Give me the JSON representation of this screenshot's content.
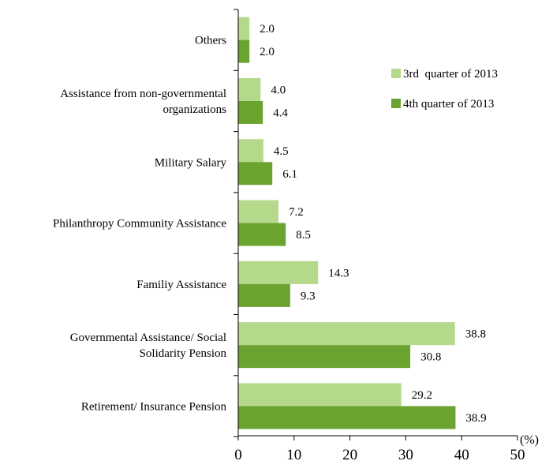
{
  "chart_data": {
    "type": "bar",
    "orientation": "horizontal",
    "categories": [
      [
        "Others"
      ],
      [
        "Assistance from non-governmental",
        "organizations"
      ],
      [
        "Military Salary"
      ],
      [
        "Philanthropy Community Assistance"
      ],
      [
        "Familiy Assistance"
      ],
      [
        "Governmental Assistance/ Social",
        "Solidarity Pension"
      ],
      [
        "Retirement/ Insurance Pension"
      ]
    ],
    "series": [
      {
        "name": "3rd  quarter of 2013",
        "color": "#b5d98b",
        "values": [
          2.0,
          4.0,
          4.5,
          7.2,
          14.3,
          38.8,
          29.2
        ]
      },
      {
        "name": "4th quarter of 2013",
        "color": "#6aa330",
        "values": [
          2.0,
          4.4,
          6.1,
          8.5,
          9.3,
          30.8,
          38.9
        ]
      }
    ],
    "value_labels": [
      [
        "2.0",
        "4.0",
        "4.5",
        "7.2",
        "14.3",
        "38.8",
        "29.2"
      ],
      [
        "2.0",
        "4.4",
        "6.1",
        "8.5",
        "9.3",
        "30.8",
        "38.9"
      ]
    ],
    "xlim": [
      0,
      50
    ],
    "xticks": [
      "0",
      "10",
      "20",
      "30",
      "40",
      "50"
    ],
    "x_unit": "(%)",
    "legend_position": "right",
    "grid": false
  }
}
